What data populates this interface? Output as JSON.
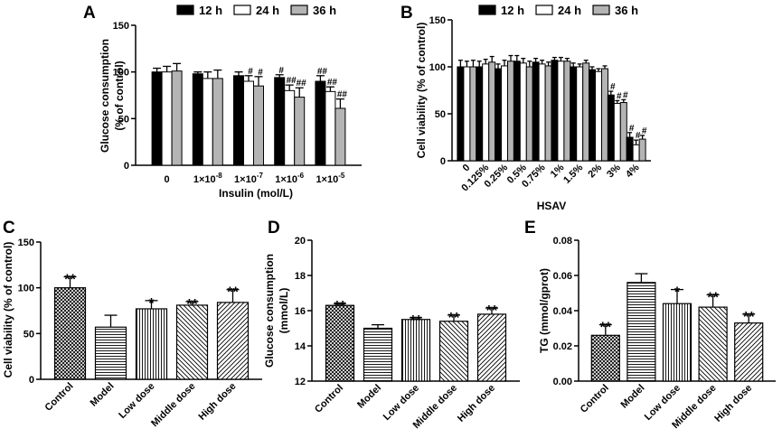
{
  "chart_data": [
    {
      "panel": "A",
      "type": "bar",
      "ylabel_lines": [
        "Glucose consumption",
        "(% of control)"
      ],
      "xlabel": "Insulin (mol/L)",
      "ylim": [
        0,
        150
      ],
      "yticks": [
        0,
        50,
        100,
        150
      ],
      "categories": [
        "0",
        "1×10",
        "1×10",
        "1×10",
        "1×10"
      ],
      "category_exponents": [
        "",
        "-8",
        "-7",
        "-6",
        "-5"
      ],
      "series": [
        {
          "name": "12 h",
          "color": "#000000",
          "values": [
            100,
            98,
            96,
            94,
            90
          ],
          "errors": [
            4,
            2,
            4,
            3,
            6
          ],
          "marks": [
            "",
            "",
            "",
            "#",
            "##"
          ]
        },
        {
          "name": "24 h",
          "color": "#ffffff",
          "values": [
            100,
            93,
            90,
            80,
            79
          ],
          "errors": [
            6,
            7,
            6,
            6,
            5
          ],
          "marks": [
            "",
            "",
            "#",
            "##",
            "##"
          ]
        },
        {
          "name": "36 h",
          "color": "#b4b4b4",
          "values": [
            101,
            93,
            85,
            73,
            61
          ],
          "errors": [
            8,
            9,
            10,
            10,
            10
          ],
          "marks": [
            "",
            "",
            "#",
            "##",
            "##"
          ]
        }
      ],
      "legend": [
        "12 h",
        "24 h",
        "36 h"
      ]
    },
    {
      "panel": "B",
      "type": "bar",
      "ylabel_lines": [
        "Cell viability (% of control)"
      ],
      "xlabel": "HSAV",
      "ylim": [
        0,
        150
      ],
      "yticks": [
        0,
        50,
        100,
        150
      ],
      "categories": [
        "0",
        "0.125%",
        "0.25%",
        "0.5%",
        "0.75%",
        "1%",
        "1.5%",
        "2%",
        "3%",
        "4%"
      ],
      "series": [
        {
          "name": "12 h",
          "color": "#000000",
          "values": [
            100,
            100,
            98,
            106,
            105,
            107,
            100,
            97,
            70,
            25
          ],
          "errors": [
            7,
            6,
            5,
            6,
            4,
            3,
            4,
            3,
            4,
            5
          ],
          "marks": [
            "",
            "",
            "",
            "",
            "",
            "",
            "",
            "",
            "#",
            "#"
          ]
        },
        {
          "name": "24 h",
          "color": "#ffffff",
          "values": [
            100,
            103,
            101,
            104,
            103,
            106,
            100,
            95,
            61,
            17
          ],
          "errors": [
            6,
            5,
            6,
            5,
            4,
            4,
            3,
            3,
            3,
            5
          ],
          "marks": [
            "",
            "",
            "",
            "",
            "",
            "",
            "",
            "",
            "#",
            "#"
          ]
        },
        {
          "name": "36 h",
          "color": "#b4b4b4",
          "values": [
            100,
            105,
            106,
            100,
            101,
            106,
            104,
            98,
            62,
            23
          ],
          "errors": [
            7,
            6,
            6,
            6,
            4,
            3,
            3,
            3,
            3,
            4
          ],
          "marks": [
            "",
            "",
            "",
            "",
            "",
            "",
            "",
            "",
            "#",
            "#"
          ]
        }
      ],
      "legend": [
        "12 h",
        "24 h",
        "36 h"
      ]
    },
    {
      "panel": "C",
      "type": "bar",
      "ylabel_lines": [
        "Cell viability (% of control)"
      ],
      "ylim": [
        0,
        150
      ],
      "yticks": [
        0,
        50,
        100,
        150
      ],
      "categories": [
        "Control",
        "Model",
        "Low dose",
        "Middle dose",
        "High dose"
      ],
      "values": [
        100,
        57,
        77,
        81,
        84
      ],
      "errors": [
        12,
        13,
        9,
        4,
        14
      ],
      "marks": [
        "**",
        "",
        "*",
        "**",
        "**"
      ],
      "patterns": [
        "crosshatch",
        "horizontal",
        "vertical",
        "diagonal-down",
        "diagonal-up"
      ]
    },
    {
      "panel": "D",
      "type": "bar",
      "ylabel_lines": [
        "Glucose consumption",
        "(mmol/L)"
      ],
      "ylim": [
        12,
        20
      ],
      "yticks": [
        12,
        14,
        16,
        18,
        20
      ],
      "categories": [
        "Control",
        "Model",
        "Low dose",
        "Middle dose",
        "High dose"
      ],
      "values": [
        16.3,
        15.0,
        15.5,
        15.4,
        15.8
      ],
      "errors": [
        0.1,
        0.2,
        0.1,
        0.35,
        0.35
      ],
      "marks": [
        "**",
        "",
        "**",
        "**",
        "**"
      ],
      "patterns": [
        "crosshatch",
        "horizontal",
        "vertical",
        "diagonal-down",
        "diagonal-up"
      ]
    },
    {
      "panel": "E",
      "type": "bar",
      "ylabel_lines": [
        "TG (mmol/gprot)"
      ],
      "ylim": [
        0,
        0.08
      ],
      "yticks": [
        0.0,
        0.02,
        0.04,
        0.06,
        0.08
      ],
      "categories": [
        "Control",
        "Model",
        "Low dose",
        "Middle dose",
        "High dose"
      ],
      "values": [
        0.026,
        0.056,
        0.044,
        0.042,
        0.033
      ],
      "errors": [
        0.006,
        0.005,
        0.008,
        0.007,
        0.005
      ],
      "marks": [
        "**",
        "",
        "*",
        "**",
        "**"
      ],
      "patterns": [
        "crosshatch",
        "horizontal",
        "vertical",
        "diagonal-down",
        "diagonal-up"
      ]
    }
  ]
}
